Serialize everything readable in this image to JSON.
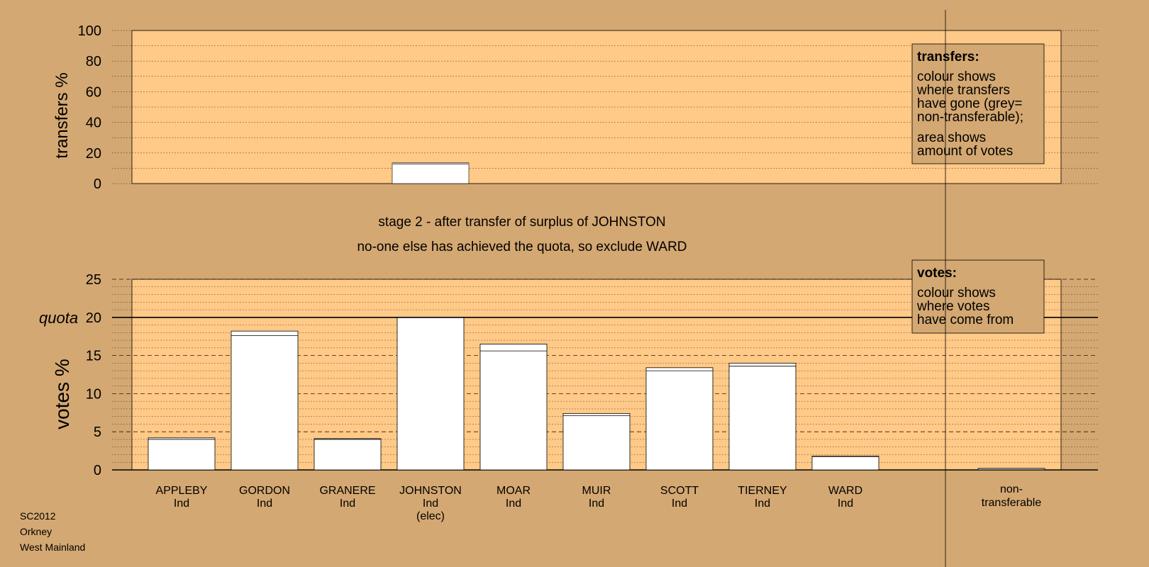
{
  "colors": {
    "background": "#d4a872",
    "plot_bg": "#ffc987",
    "bar": "#ffffff",
    "line": "#000000"
  },
  "header": {
    "title_line1": "stage 2 - after transfer of surplus of JOHNSTON",
    "title_line2": "no-one else has achieved the quota, so exclude WARD"
  },
  "footer": {
    "line1": "SC2012",
    "line2": "Orkney",
    "line3": "West Mainland"
  },
  "legends": {
    "transfers": {
      "heading": "transfers:",
      "lines1": [
        "colour shows",
        "where transfers",
        "have gone (grey=",
        "non-transferable);"
      ],
      "lines2": [
        "area shows",
        "amount of votes"
      ]
    },
    "votes": {
      "heading": "votes:",
      "lines1": [
        "colour shows",
        "where votes",
        "have come from"
      ]
    }
  },
  "chart_data": [
    {
      "type": "bar",
      "ylabel": "transfers %",
      "ylim": [
        0,
        100
      ],
      "yticks": [
        0,
        20,
        40,
        60,
        80,
        100
      ],
      "grid": true,
      "bars": [
        {
          "candidate": "JOHNSTON",
          "value": 13.5
        }
      ]
    },
    {
      "type": "bar",
      "ylabel": "votes %",
      "ylim": [
        0,
        25
      ],
      "yticks": [
        0,
        5,
        10,
        15,
        20,
        25
      ],
      "quota": 20,
      "quota_label": "quota",
      "grid": true,
      "categories": [
        {
          "name": "APPLEBY",
          "party": "Ind",
          "note": "",
          "value": 4.2,
          "transfer": 0.2
        },
        {
          "name": "GORDON",
          "party": "Ind",
          "note": "",
          "value": 18.2,
          "transfer": 0.6
        },
        {
          "name": "GRANERE",
          "party": "Ind",
          "note": "",
          "value": 4.1,
          "transfer": 0.1
        },
        {
          "name": "JOHNSTON",
          "party": "Ind",
          "note": "(elec)",
          "value": 20.0,
          "transfer": 0
        },
        {
          "name": "MOAR",
          "party": "Ind",
          "note": "",
          "value": 16.5,
          "transfer": 0.9
        },
        {
          "name": "MUIR",
          "party": "Ind",
          "note": "",
          "value": 7.4,
          "transfer": 0.3
        },
        {
          "name": "SCOTT",
          "party": "Ind",
          "note": "",
          "value": 13.4,
          "transfer": 0.4
        },
        {
          "name": "TIERNEY",
          "party": "Ind",
          "note": "",
          "value": 14.0,
          "transfer": 0.4
        },
        {
          "name": "WARD",
          "party": "Ind",
          "note": "",
          "value": 1.8,
          "transfer": 0.05
        }
      ],
      "nontransferable": {
        "line1": "non-",
        "line2": "transferable",
        "value": 0.2
      }
    }
  ]
}
